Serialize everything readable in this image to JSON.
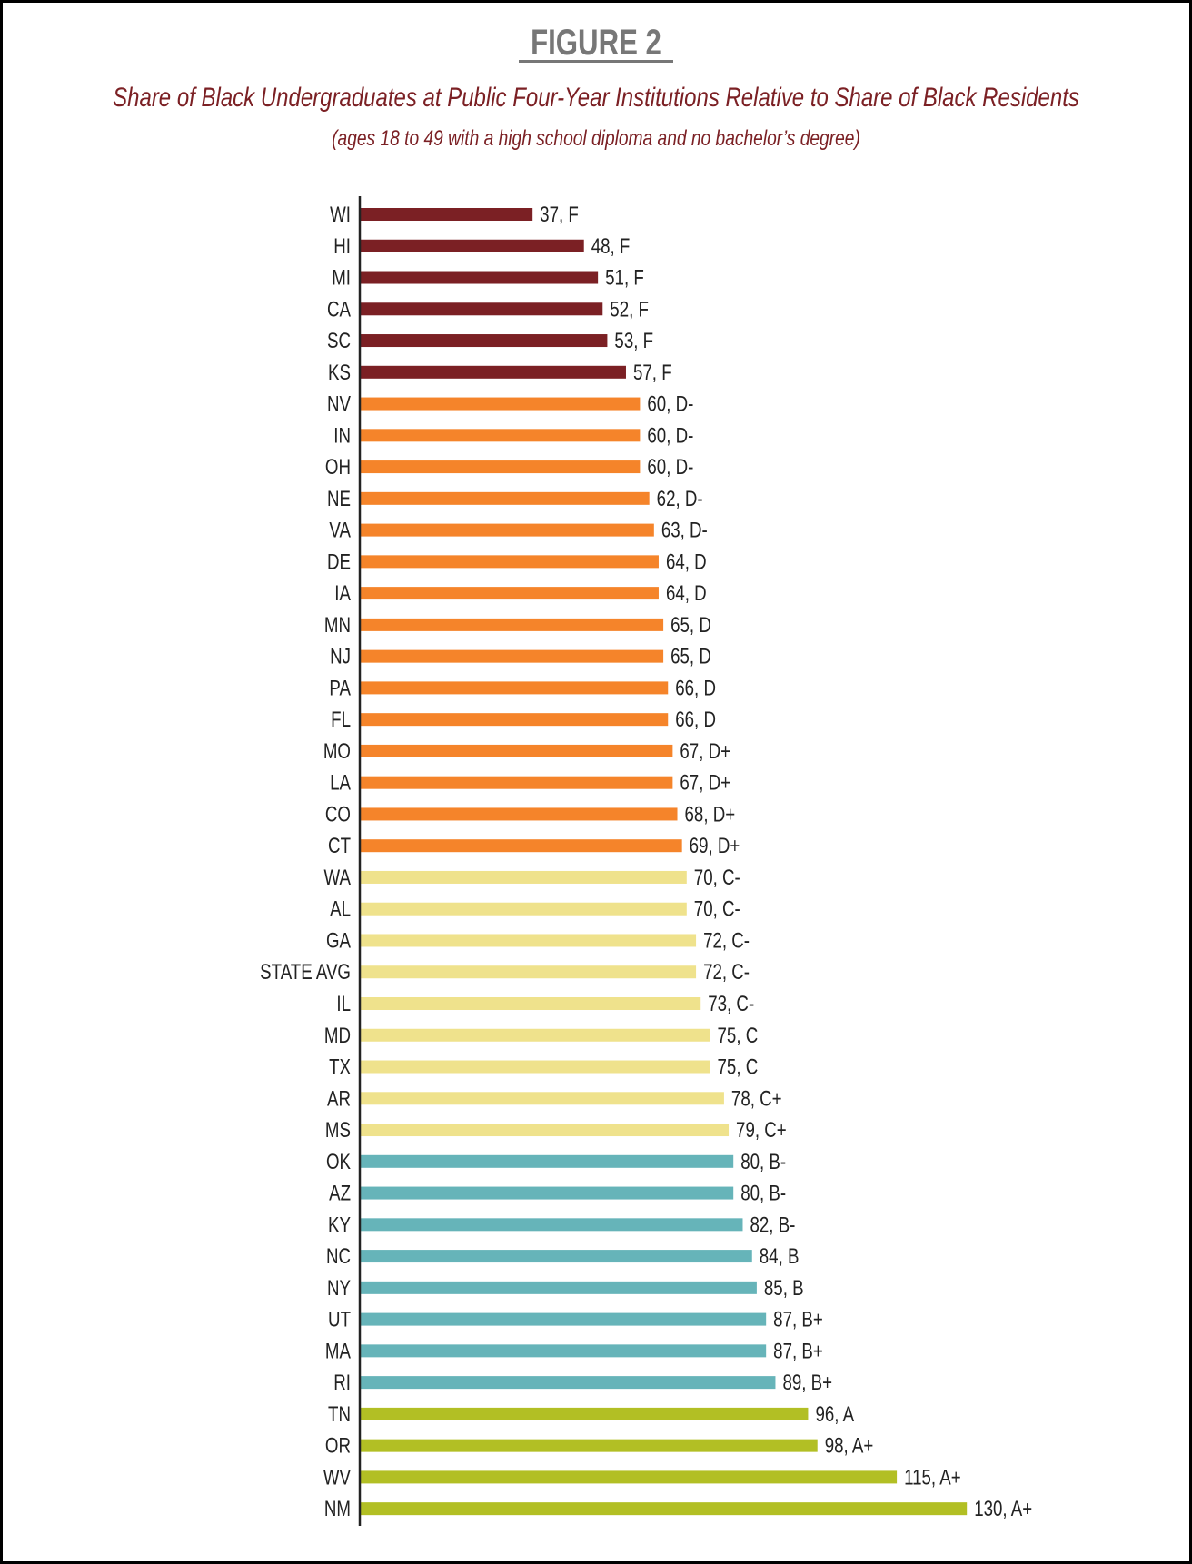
{
  "chart_data": {
    "type": "bar",
    "orientation": "horizontal",
    "title": "FIGURE 2",
    "subtitle": "Share of Black Undergraduates at Public Four-Year Institutions Relative to Share of Black Residents",
    "note": "(ages 18 to 49 with a high school diploma and no bachelor’s degree)",
    "xlabel": "",
    "ylabel": "",
    "xlim": [
      0,
      135
    ],
    "grid": false,
    "categories": [
      "WI",
      "HI",
      "MI",
      "CA",
      "SC",
      "KS",
      "NV",
      "IN",
      "OH",
      "NE",
      "VA",
      "DE",
      "IA",
      "MN",
      "NJ",
      "PA",
      "FL",
      "MO",
      "LA",
      "CO",
      "CT",
      "WA",
      "AL",
      "GA",
      "STATE AVG",
      "IL",
      "MD",
      "TX",
      "AR",
      "MS",
      "OK",
      "AZ",
      "KY",
      "NC",
      "NY",
      "UT",
      "MA",
      "RI",
      "TN",
      "OR",
      "WV",
      "NM"
    ],
    "values": [
      37,
      48,
      51,
      52,
      53,
      57,
      60,
      60,
      60,
      62,
      63,
      64,
      64,
      65,
      65,
      66,
      66,
      67,
      67,
      68,
      69,
      70,
      70,
      72,
      72,
      73,
      75,
      75,
      78,
      79,
      80,
      80,
      82,
      84,
      85,
      87,
      87,
      89,
      96,
      98,
      115,
      130
    ],
    "grades": [
      "F",
      "F",
      "F",
      "F",
      "F",
      "F",
      "D-",
      "D-",
      "D-",
      "D-",
      "D-",
      "D",
      "D",
      "D",
      "D",
      "D",
      "D",
      "D+",
      "D+",
      "D+",
      "D+",
      "C-",
      "C-",
      "C-",
      "C-",
      "C-",
      "C",
      "C",
      "C+",
      "C+",
      "B-",
      "B-",
      "B-",
      "B",
      "B",
      "B+",
      "B+",
      "B+",
      "A",
      "A+",
      "A+",
      "A+"
    ],
    "grade_colors": {
      "F": "#7b2024",
      "D": "#f5842a",
      "C": "#efe28c",
      "B": "#66b4b9",
      "A": "#b2bf24"
    }
  }
}
